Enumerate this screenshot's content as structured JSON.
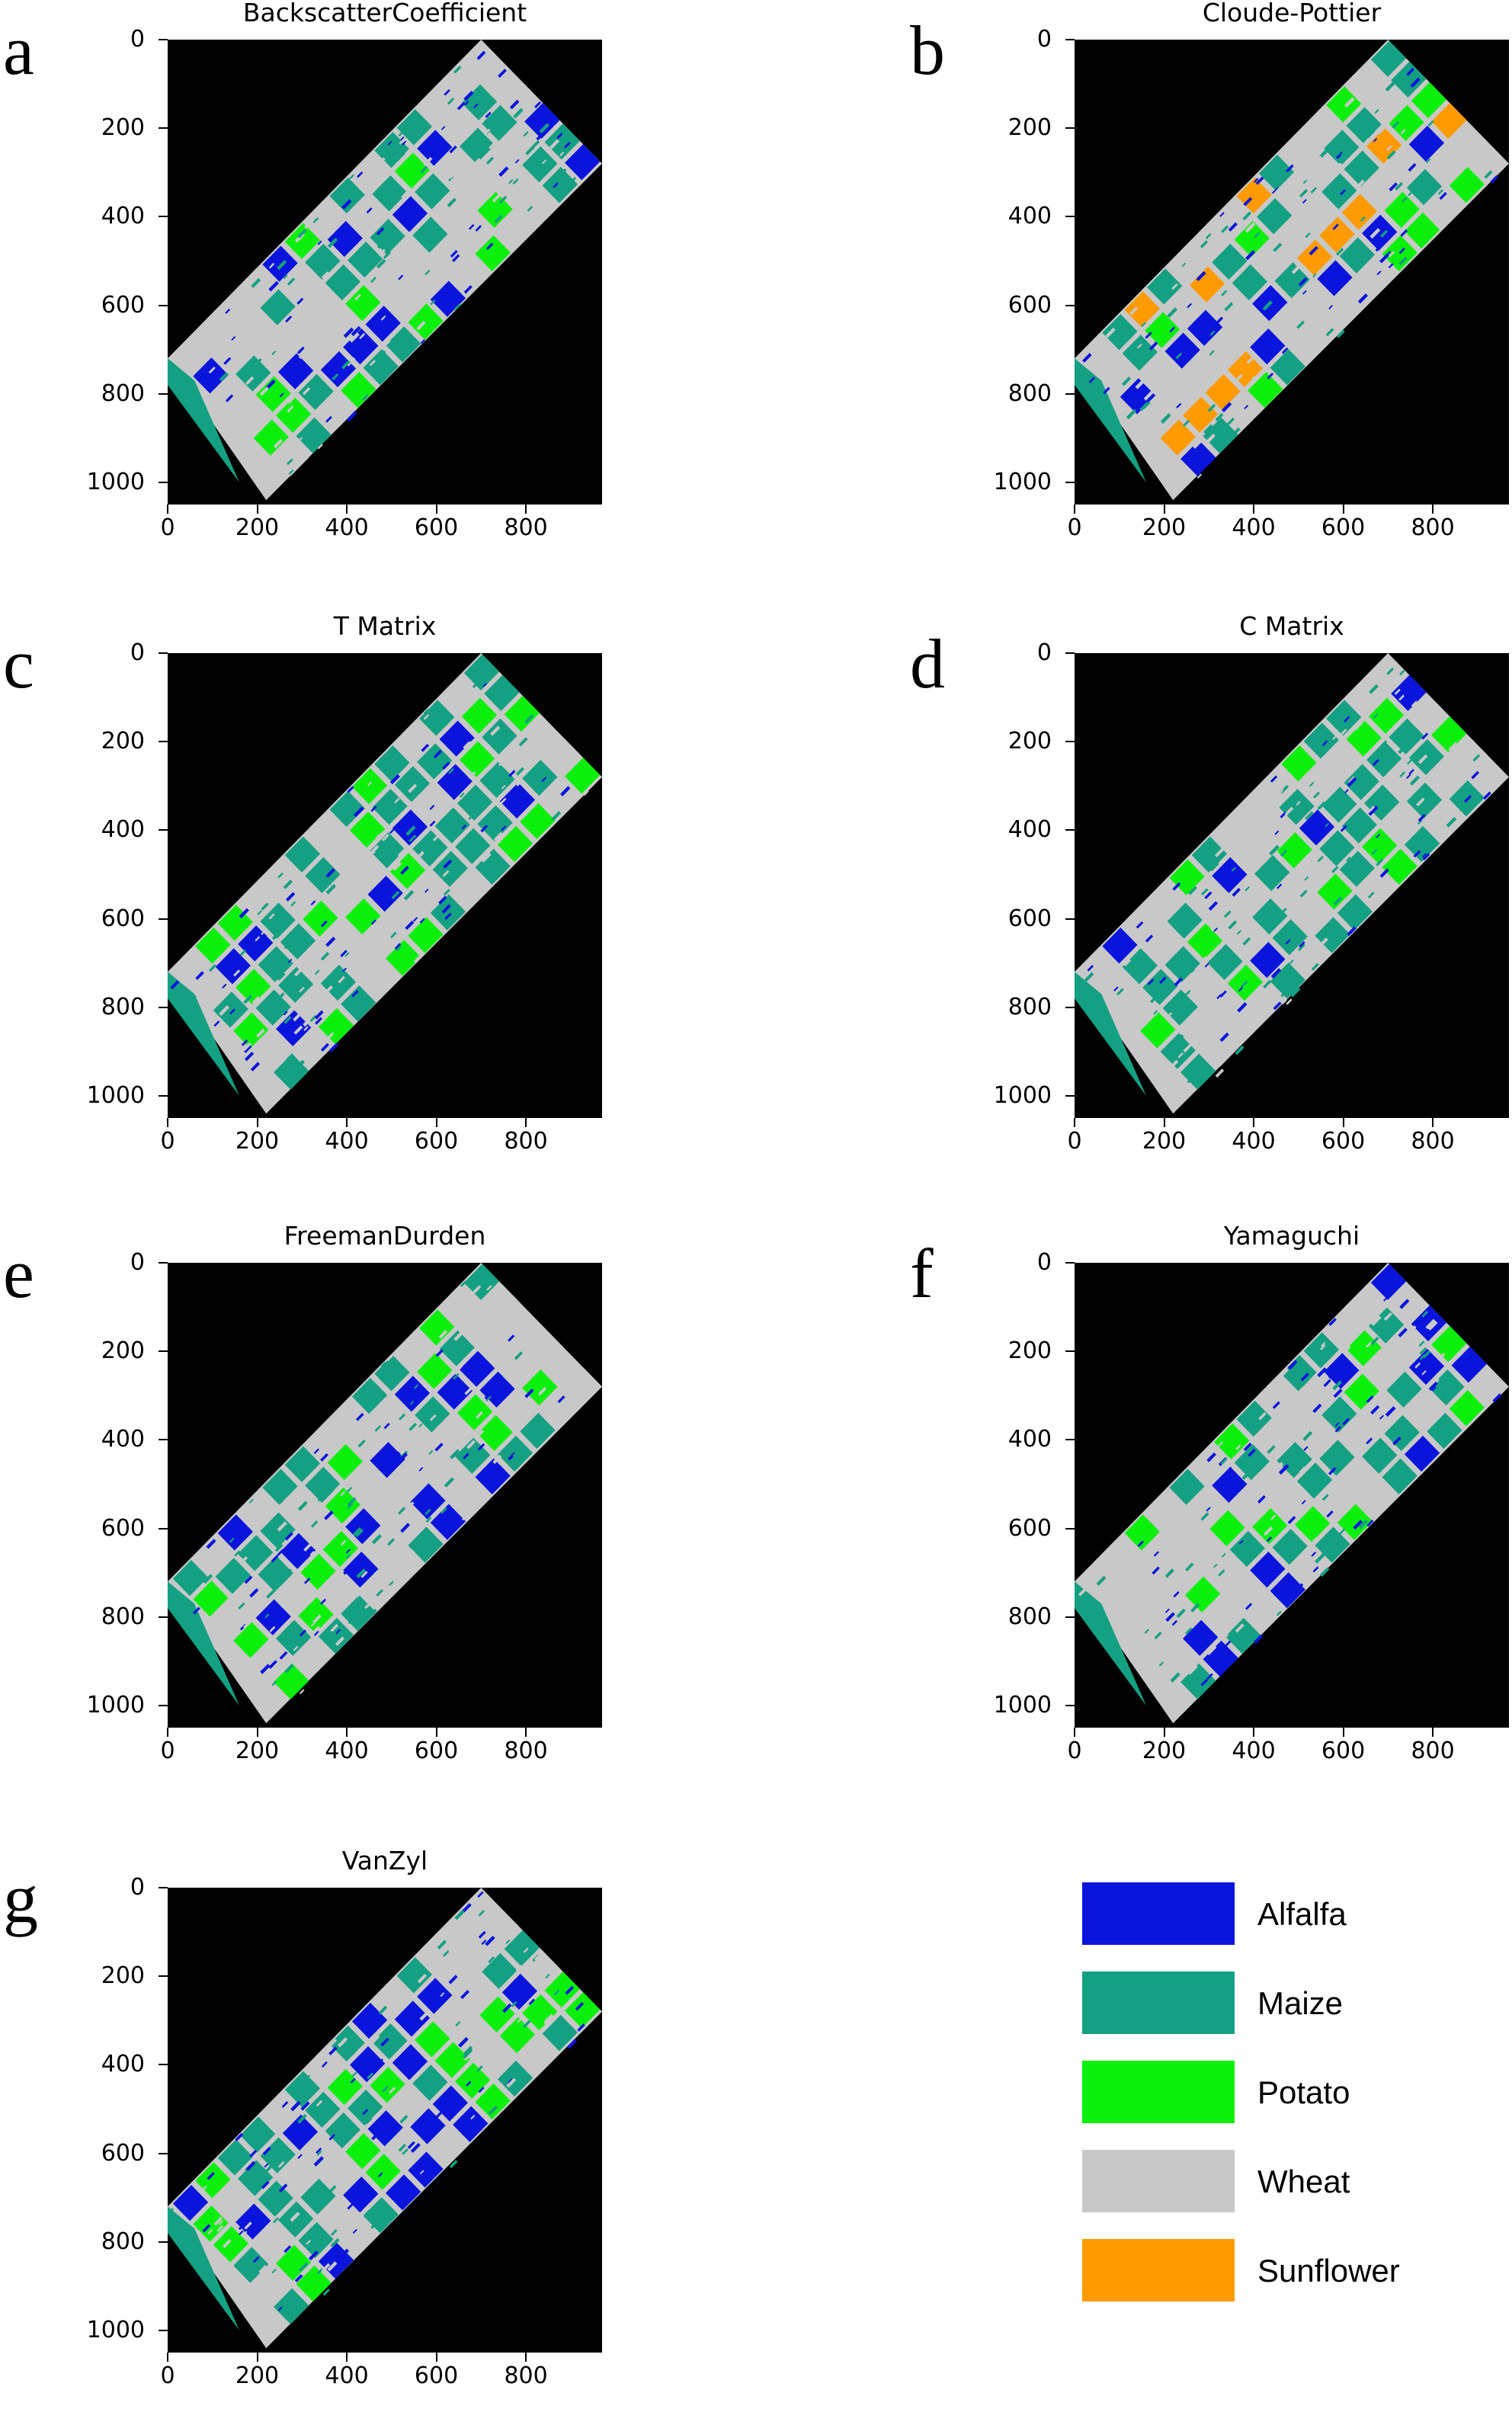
{
  "panels": [
    {
      "letter": "a",
      "title": "BackscatterCoefficient",
      "extra": "alfalfa"
    },
    {
      "letter": "b",
      "title": "Cloude-Pottier",
      "extra": "sunflower"
    },
    {
      "letter": "c",
      "title": "T Matrix",
      "extra": "maize"
    },
    {
      "letter": "d",
      "title": "C Matrix",
      "extra": "maize"
    },
    {
      "letter": "e",
      "title": "FreemanDurden",
      "extra": "alfalfa"
    },
    {
      "letter": "f",
      "title": "Yamaguchi",
      "extra": "alfalfa"
    },
    {
      "letter": "g",
      "title": "VanZyl",
      "extra": "alfalfa"
    }
  ],
  "axes": {
    "y_ticks": [
      "0",
      "200",
      "400",
      "600",
      "800",
      "1000"
    ],
    "x_ticks": [
      "0",
      "200",
      "400",
      "600",
      "800"
    ],
    "y_values": [
      0,
      200,
      400,
      600,
      800,
      1000
    ],
    "x_values": [
      0,
      200,
      400,
      600,
      800
    ],
    "xlim": [
      0,
      970
    ],
    "ylim": [
      1050,
      0
    ]
  },
  "legend": {
    "items": [
      {
        "label": "Alfalfa",
        "color": "#0a14dc"
      },
      {
        "label": "Maize",
        "color": "#14a082"
      },
      {
        "label": "Potato",
        "color": "#0af00a"
      },
      {
        "label": "Wheat",
        "color": "#c8c8c8"
      },
      {
        "label": "Sunflower",
        "color": "#ff9b00"
      }
    ]
  },
  "colors": {
    "background": "#000000",
    "alfalfa": "#0a14dc",
    "maize": "#14a082",
    "potato": "#0af00a",
    "wheat": "#c8c8c8",
    "sunflower": "#ff9b00"
  }
}
